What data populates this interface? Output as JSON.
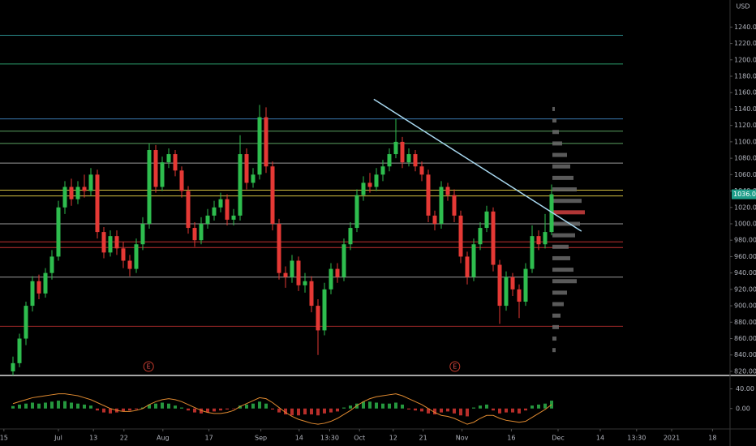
{
  "chart_data": {
    "type": "candlestick",
    "currency": "USD",
    "up_color": "#2ebd4e",
    "down_color": "#e53935",
    "candles": [
      [
        820,
        838,
        815,
        830
      ],
      [
        830,
        866,
        825,
        860
      ],
      [
        860,
        905,
        852,
        900
      ],
      [
        900,
        936,
        893,
        930
      ],
      [
        930,
        938,
        908,
        915
      ],
      [
        915,
        946,
        910,
        940
      ],
      [
        940,
        968,
        932,
        960
      ],
      [
        960,
        1028,
        955,
        1020
      ],
      [
        1020,
        1052,
        1012,
        1045
      ],
      [
        1045,
        1055,
        1022,
        1030
      ],
      [
        1030,
        1052,
        1024,
        1045
      ],
      [
        1045,
        1060,
        1032,
        1040
      ],
      [
        1040,
        1068,
        1034,
        1060
      ],
      [
        1060,
        1066,
        982,
        990
      ],
      [
        990,
        996,
        958,
        965
      ],
      [
        965,
        992,
        960,
        985
      ],
      [
        985,
        992,
        962,
        970
      ],
      [
        970,
        978,
        946,
        955
      ],
      [
        955,
        962,
        936,
        945
      ],
      [
        945,
        982,
        940,
        975
      ],
      [
        975,
        1008,
        968,
        1000
      ],
      [
        1000,
        1098,
        994,
        1090
      ],
      [
        1090,
        1096,
        1038,
        1045
      ],
      [
        1045,
        1082,
        1040,
        1075
      ],
      [
        1075,
        1092,
        1068,
        1085
      ],
      [
        1085,
        1090,
        1058,
        1065
      ],
      [
        1065,
        1070,
        1032,
        1040
      ],
      [
        1040,
        1046,
        988,
        995
      ],
      [
        995,
        1002,
        972,
        980
      ],
      [
        980,
        1008,
        975,
        1000
      ],
      [
        1000,
        1018,
        994,
        1010
      ],
      [
        1010,
        1028,
        1004,
        1020
      ],
      [
        1020,
        1038,
        1014,
        1030
      ],
      [
        1030,
        1036,
        998,
        1005
      ],
      [
        1005,
        1018,
        998,
        1010
      ],
      [
        1010,
        1108,
        1004,
        1085
      ],
      [
        1085,
        1092,
        1042,
        1050
      ],
      [
        1050,
        1068,
        1044,
        1060
      ],
      [
        1060,
        1145,
        1054,
        1130
      ],
      [
        1130,
        1142,
        1062,
        1070
      ],
      [
        1070,
        1076,
        992,
        1000
      ],
      [
        1000,
        1006,
        932,
        940
      ],
      [
        940,
        948,
        922,
        935
      ],
      [
        935,
        962,
        928,
        955
      ],
      [
        955,
        960,
        918,
        925
      ],
      [
        925,
        940,
        916,
        930
      ],
      [
        930,
        936,
        892,
        900
      ],
      [
        900,
        908,
        840,
        870
      ],
      [
        870,
        928,
        864,
        920
      ],
      [
        920,
        952,
        914,
        945
      ],
      [
        945,
        952,
        928,
        935
      ],
      [
        935,
        982,
        930,
        975
      ],
      [
        975,
        1002,
        968,
        995
      ],
      [
        995,
        1042,
        990,
        1035
      ],
      [
        1035,
        1058,
        1028,
        1050
      ],
      [
        1050,
        1062,
        1038,
        1045
      ],
      [
        1045,
        1068,
        1040,
        1060
      ],
      [
        1060,
        1078,
        1052,
        1070
      ],
      [
        1070,
        1092,
        1064,
        1085
      ],
      [
        1085,
        1128,
        1080,
        1100
      ],
      [
        1100,
        1106,
        1068,
        1075
      ],
      [
        1075,
        1092,
        1070,
        1085
      ],
      [
        1085,
        1090,
        1064,
        1070
      ],
      [
        1070,
        1076,
        1052,
        1060
      ],
      [
        1060,
        1066,
        1002,
        1010
      ],
      [
        1010,
        1016,
        992,
        1000
      ],
      [
        1000,
        1052,
        994,
        1045
      ],
      [
        1045,
        1050,
        1028,
        1035
      ],
      [
        1035,
        1042,
        1002,
        1010
      ],
      [
        1010,
        1016,
        952,
        960
      ],
      [
        960,
        966,
        926,
        935
      ],
      [
        935,
        982,
        930,
        975
      ],
      [
        975,
        1002,
        968,
        995
      ],
      [
        995,
        1022,
        990,
        1015
      ],
      [
        1015,
        1020,
        942,
        950
      ],
      [
        950,
        956,
        878,
        900
      ],
      [
        900,
        942,
        894,
        935
      ],
      [
        935,
        940,
        912,
        920
      ],
      [
        920,
        926,
        885,
        905
      ],
      [
        905,
        952,
        900,
        945
      ],
      [
        945,
        998,
        940,
        985
      ],
      [
        985,
        992,
        968,
        975
      ],
      [
        975,
        1012,
        970,
        990
      ],
      [
        990,
        1048,
        986,
        1036
      ]
    ],
    "ylim": [
      816,
      1273
    ],
    "yticks": [
      {
        "value": 820,
        "label": "820.00"
      },
      {
        "value": 840,
        "label": "840.00"
      },
      {
        "value": 860,
        "label": "860.00"
      },
      {
        "value": 880,
        "label": "880.00"
      },
      {
        "value": 900,
        "label": "900.00"
      },
      {
        "value": 920,
        "label": "920.00"
      },
      {
        "value": 940,
        "label": "940.00"
      },
      {
        "value": 960,
        "label": "960.00"
      },
      {
        "value": 980,
        "label": "980.00"
      },
      {
        "value": 1000,
        "label": "1000.00"
      },
      {
        "value": 1020,
        "label": "1020.00"
      },
      {
        "value": 1040,
        "label": "1040.00"
      },
      {
        "value": 1060,
        "label": "1060.00"
      },
      {
        "value": 1080,
        "label": "1080.00"
      },
      {
        "value": 1100,
        "label": "1100.00"
      },
      {
        "value": 1120,
        "label": "1120.00"
      },
      {
        "value": 1140,
        "label": "1140.00"
      },
      {
        "value": 1160,
        "label": "1160.00"
      },
      {
        "value": 1180,
        "label": "1180.00"
      },
      {
        "value": 1200,
        "label": "1200.00"
      },
      {
        "value": 1220,
        "label": "1220.00"
      },
      {
        "value": 1240,
        "label": "1240.00"
      }
    ],
    "xlim": [
      -2,
      110.5
    ],
    "xticks": [
      {
        "value": -1.4,
        "label": "15"
      },
      {
        "value": 7,
        "label": "Jul"
      },
      {
        "value": 12.4,
        "label": "13"
      },
      {
        "value": 17.1,
        "label": "22"
      },
      {
        "value": 23.1,
        "label": "Aug"
      },
      {
        "value": 30.2,
        "label": "17"
      },
      {
        "value": 38.2,
        "label": "Sep"
      },
      {
        "value": 44.1,
        "label": "14"
      },
      {
        "value": 48.8,
        "label": "13:30"
      },
      {
        "value": 53.4,
        "label": "Oct"
      },
      {
        "value": 58.6,
        "label": "12"
      },
      {
        "value": 63.2,
        "label": "21"
      },
      {
        "value": 69.2,
        "label": "Nov"
      },
      {
        "value": 76.8,
        "label": "16"
      },
      {
        "value": 84,
        "label": "Dec"
      },
      {
        "value": 90.5,
        "label": "14"
      },
      {
        "value": 96.1,
        "label": "13:30"
      },
      {
        "value": 101.5,
        "label": "2021"
      },
      {
        "value": 107.8,
        "label": "18"
      }
    ],
    "last_price": {
      "value": 1036,
      "label": "1036.00"
    },
    "levels": [
      {
        "value": 1230,
        "color": "#2a8a8a"
      },
      {
        "value": 1195,
        "color": "#2a9a6a"
      },
      {
        "value": 1128,
        "color": "#3a7ab0"
      },
      {
        "value": 1113,
        "color": "#5aa060"
      },
      {
        "value": 1098,
        "color": "#5aa060"
      },
      {
        "value": 1074,
        "color": "#9a9a9a"
      },
      {
        "value": 1041,
        "color": "#d4c040"
      },
      {
        "value": 1034,
        "color": "#d4c040"
      },
      {
        "value": 1000,
        "color": "#9a9a9a"
      },
      {
        "value": 978,
        "color": "#c03030"
      },
      {
        "value": 971,
        "color": "#c03030"
      },
      {
        "value": 935,
        "color": "#9a9a9a"
      },
      {
        "value": 875,
        "color": "#a02828"
      }
    ],
    "trendline": {
      "x": [
        55.6,
        87.6
      ],
      "y": [
        1152,
        991
      ],
      "color": "#a8d8f0"
    },
    "events": [
      {
        "x": 20.9,
        "label": "E"
      },
      {
        "x": 68.1,
        "label": "E"
      }
    ],
    "volume_profile": {
      "prices": [
        846,
        860,
        874,
        888,
        902,
        916,
        930,
        944,
        958,
        972,
        986,
        1000,
        1014,
        1028,
        1042,
        1056,
        1070,
        1084,
        1098,
        1112,
        1126,
        1140
      ],
      "values": [
        4,
        5,
        8,
        10,
        14,
        18,
        30,
        26,
        22,
        20,
        28,
        34,
        40,
        36,
        30,
        26,
        22,
        18,
        12,
        8,
        5,
        3
      ],
      "color": "#6a6a6a",
      "poc_price": 1014,
      "poc_color": "#d04040"
    },
    "macd": {
      "ylim": [
        -40,
        64
      ],
      "yticks": [
        {
          "value": 40,
          "label": "40.00"
        },
        {
          "value": 0,
          "label": "0.00"
        }
      ],
      "histogram": [
        5,
        8,
        10,
        12,
        10,
        12,
        14,
        16,
        15,
        12,
        10,
        8,
        6,
        -4,
        -8,
        -10,
        -8,
        -6,
        -4,
        -2,
        2,
        8,
        10,
        12,
        10,
        6,
        2,
        -4,
        -8,
        -10,
        -8,
        -6,
        -4,
        -2,
        -1,
        6,
        8,
        10,
        14,
        10,
        -2,
        -8,
        -12,
        -14,
        -14,
        -12,
        -12,
        -14,
        -10,
        -8,
        -6,
        2,
        6,
        10,
        14,
        14,
        12,
        10,
        10,
        12,
        8,
        -2,
        -4,
        -6,
        -10,
        -12,
        -8,
        -6,
        -10,
        -14,
        -16,
        2,
        6,
        8,
        -4,
        -10,
        -8,
        -8,
        -10,
        -4,
        6,
        8,
        10,
        16
      ],
      "line": [
        10,
        14,
        18,
        22,
        24,
        26,
        28,
        30,
        30,
        28,
        26,
        22,
        18,
        12,
        6,
        0,
        -4,
        -6,
        -6,
        -4,
        0,
        8,
        14,
        18,
        20,
        18,
        14,
        8,
        2,
        -4,
        -8,
        -10,
        -10,
        -8,
        -4,
        4,
        10,
        16,
        22,
        20,
        12,
        2,
        -8,
        -16,
        -22,
        -26,
        -30,
        -32,
        -30,
        -26,
        -20,
        -12,
        -4,
        6,
        14,
        20,
        24,
        26,
        28,
        30,
        26,
        20,
        14,
        8,
        0,
        -8,
        -14,
        -16,
        -20,
        -26,
        -32,
        -28,
        -20,
        -14,
        -14,
        -20,
        -24,
        -26,
        -28,
        -26,
        -18,
        -10,
        -2,
        8
      ],
      "line_color": "#e08a30"
    }
  }
}
